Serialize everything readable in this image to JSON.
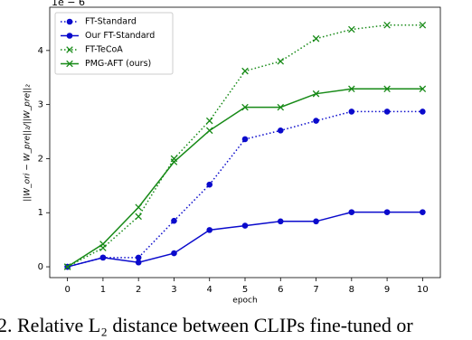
{
  "chart_data": {
    "type": "line",
    "offset_label": "1e − 6",
    "y_label": "||W_ori − W_pre||₂/||W_pre||₂",
    "x_label": "epoch",
    "caption": "2. Relative L₂ distance between CLIPs fine-tuned or",
    "x": [
      0,
      1,
      2,
      3,
      4,
      5,
      6,
      7,
      8,
      9,
      10
    ],
    "xlim": [
      -0.5,
      10.5
    ],
    "xticks": [
      0,
      1,
      2,
      3,
      4,
      5,
      6,
      7,
      8,
      9,
      10
    ],
    "ylim": [
      -0.2,
      4.8
    ],
    "yticks": [
      0,
      1,
      2,
      3,
      4
    ],
    "legend": "upper left",
    "series": [
      {
        "name": "FT-Standard",
        "color": "#0a0acc",
        "linestyle": "dotted",
        "marker": "o",
        "values": [
          0,
          0.17,
          0.17,
          0.85,
          1.52,
          2.36,
          2.52,
          2.7,
          2.87,
          2.87,
          2.87
        ]
      },
      {
        "name": "Our FT-Standard",
        "color": "#0a0acc",
        "linestyle": "solid",
        "marker": "o",
        "values": [
          0,
          0.17,
          0.08,
          0.25,
          0.68,
          0.76,
          0.84,
          0.84,
          1.01,
          1.01,
          1.01
        ]
      },
      {
        "name": "FT-TeCoA",
        "color": "#178a17",
        "linestyle": "dotted",
        "marker": "x",
        "values": [
          0,
          0.35,
          0.93,
          2.0,
          2.7,
          3.62,
          3.8,
          4.22,
          4.39,
          4.47,
          4.47
        ]
      },
      {
        "name": "PMG-AFT (ours)",
        "color": "#178a17",
        "linestyle": "solid",
        "marker": "x",
        "values": [
          0,
          0.42,
          1.1,
          1.94,
          2.52,
          2.95,
          2.95,
          3.2,
          3.29,
          3.29,
          3.29
        ]
      }
    ]
  }
}
